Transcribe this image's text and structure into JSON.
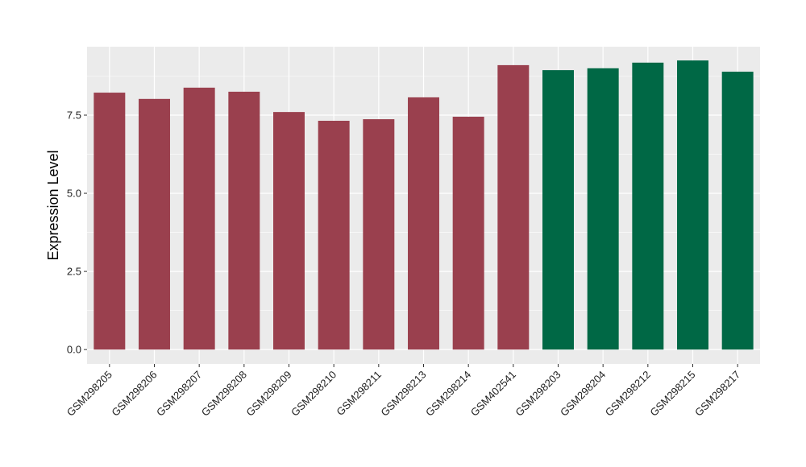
{
  "chart_data": {
    "type": "bar",
    "y_label": "Expression Level",
    "categories": [
      "GSM298205",
      "GSM298206",
      "GSM298207",
      "GSM298208",
      "GSM298209",
      "GSM298210",
      "GSM298211",
      "GSM298213",
      "GSM298214",
      "GSM402541",
      "GSM298203",
      "GSM298204",
      "GSM298212",
      "GSM298215",
      "GSM298217"
    ],
    "values": [
      8.22,
      8.02,
      8.38,
      8.25,
      7.6,
      7.32,
      7.37,
      8.07,
      7.45,
      9.1,
      8.94,
      9.0,
      9.18,
      9.25,
      8.89
    ],
    "colors": [
      "#9a404e",
      "#9a404e",
      "#9a404e",
      "#9a404e",
      "#9a404e",
      "#9a404e",
      "#9a404e",
      "#9a404e",
      "#9a404e",
      "#9a404e",
      "#006845",
      "#006845",
      "#006845",
      "#006845",
      "#006845"
    ],
    "ylim": [
      -0.46,
      9.69
    ],
    "yticks": [
      {
        "value": 0,
        "label": "0.0"
      },
      2.5,
      {
        "value": 5,
        "label": "5.0"
      },
      7.5
    ],
    "grid": true
  }
}
